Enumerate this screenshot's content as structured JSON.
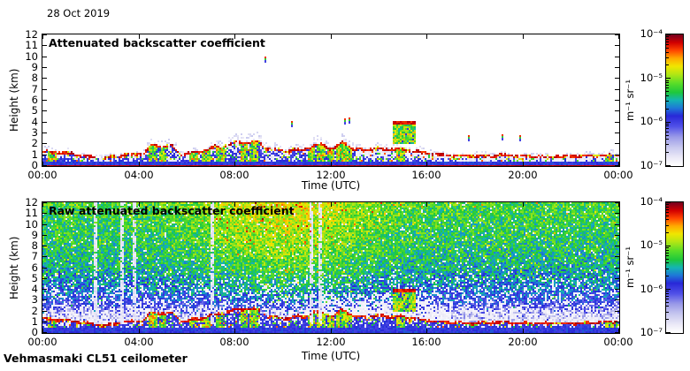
{
  "date_label": "28 Oct 2019",
  "footer_label": "Vehmasmaki CL51 ceilometer",
  "chart_data": {
    "type": "heatmap",
    "x_axis": {
      "label": "Time (UTC)",
      "range_hours": [
        0,
        24
      ],
      "tick_labels": [
        "00:00",
        "04:00",
        "08:00",
        "12:00",
        "16:00",
        "20:00",
        "00:00"
      ]
    },
    "y_axis": {
      "label": "Height (km)",
      "range_km": [
        0,
        12
      ],
      "tick_labels": [
        "0",
        "1",
        "2",
        "3",
        "4",
        "5",
        "6",
        "7",
        "8",
        "9",
        "10",
        "11",
        "12"
      ]
    },
    "colorbar": {
      "scale": "log",
      "unit_label": "m⁻¹ sr⁻¹",
      "tick_labels": [
        "10⁻⁴",
        "10⁻⁵",
        "10⁻⁶",
        "10⁻⁷"
      ],
      "range": [
        "1e-7",
        "1e-4"
      ]
    },
    "colormap": {
      "scale_stops": [
        [
          0.0,
          "#ffffff"
        ],
        [
          0.06,
          "#eceaf7"
        ],
        [
          0.14,
          "#c8c8ef"
        ],
        [
          0.22,
          "#9a9ae8"
        ],
        [
          0.3,
          "#5050e8"
        ],
        [
          0.38,
          "#2828d8"
        ],
        [
          0.44,
          "#1e78d8"
        ],
        [
          0.5,
          "#14b4b4"
        ],
        [
          0.56,
          "#1ec83c"
        ],
        [
          0.63,
          "#5add28"
        ],
        [
          0.7,
          "#b4e614"
        ],
        [
          0.76,
          "#f0e600"
        ],
        [
          0.82,
          "#ffaa00"
        ],
        [
          0.88,
          "#ff4600"
        ],
        [
          0.94,
          "#d20000"
        ],
        [
          1.0,
          "#78001e"
        ]
      ]
    },
    "features": {
      "boundary_layer_top_km": [
        [
          0,
          1.35
        ],
        [
          1,
          1.15
        ],
        [
          2,
          0.85
        ],
        [
          2.6,
          0.7
        ],
        [
          3.2,
          0.95
        ],
        [
          4.2,
          1.15
        ],
        [
          4.5,
          1.85
        ],
        [
          5.4,
          1.8
        ],
        [
          5.8,
          1.05
        ],
        [
          6.4,
          1.25
        ],
        [
          7.2,
          1.7
        ],
        [
          7.6,
          1.85
        ],
        [
          8.2,
          2.2
        ],
        [
          9.0,
          2.15
        ],
        [
          9.4,
          1.5
        ],
        [
          10.2,
          1.35
        ],
        [
          11.0,
          1.6
        ],
        [
          11.6,
          2.0
        ],
        [
          12.1,
          1.5
        ],
        [
          12.5,
          2.2
        ],
        [
          13.0,
          1.45
        ],
        [
          14.0,
          1.55
        ],
        [
          15.0,
          1.5
        ],
        [
          16.0,
          1.15
        ],
        [
          17.0,
          0.95
        ],
        [
          18.0,
          0.9
        ],
        [
          19.0,
          0.95
        ],
        [
          20.0,
          0.9
        ],
        [
          21.0,
          0.85
        ],
        [
          22.0,
          0.9
        ],
        [
          23.0,
          0.95
        ],
        [
          24.0,
          1.05
        ]
      ],
      "plume_hours": [
        0.4,
        4.6,
        5.0,
        6.3,
        6.8,
        7.4,
        8.4,
        8.8,
        11.2,
        11.6,
        12.0,
        12.4,
        12.7,
        14.9,
        23.6
      ],
      "cloud_layers": [
        {
          "start_hour": 14.6,
          "end_hour": 15.55,
          "base_km": 2.0,
          "top_km": 3.9
        }
      ]
    },
    "panels": [
      {
        "id": "attenuated",
        "title": "Attenuated backscatter coefficient",
        "xlabel": "Time (UTC)",
        "ylabel": "Height (km)",
        "background": "white below detection threshold",
        "isolated_echoes": [
          {
            "hour": 9.25,
            "height_km": 9.7
          },
          {
            "hour": 10.35,
            "height_km": 3.8
          },
          {
            "hour": 12.55,
            "height_km": 4.0
          },
          {
            "hour": 12.75,
            "height_km": 4.1
          },
          {
            "hour": 17.7,
            "height_km": 2.5
          },
          {
            "hour": 19.1,
            "height_km": 2.55
          },
          {
            "hour": 19.85,
            "height_km": 2.5
          }
        ]
      },
      {
        "id": "raw",
        "title": "Raw attenuated backscatter coefficient",
        "xlabel": "Time (UTC)",
        "ylabel": "Height (km)",
        "noise": {
          "description": "range-dependent speckle noise; green aloft at night, yellow-orange aloft during daylight",
          "day_peak_hour": 10.2
        },
        "gap_streak_hours": [
          2.2,
          3.3,
          3.85,
          7.05,
          11.2,
          11.55
        ]
      }
    ]
  }
}
